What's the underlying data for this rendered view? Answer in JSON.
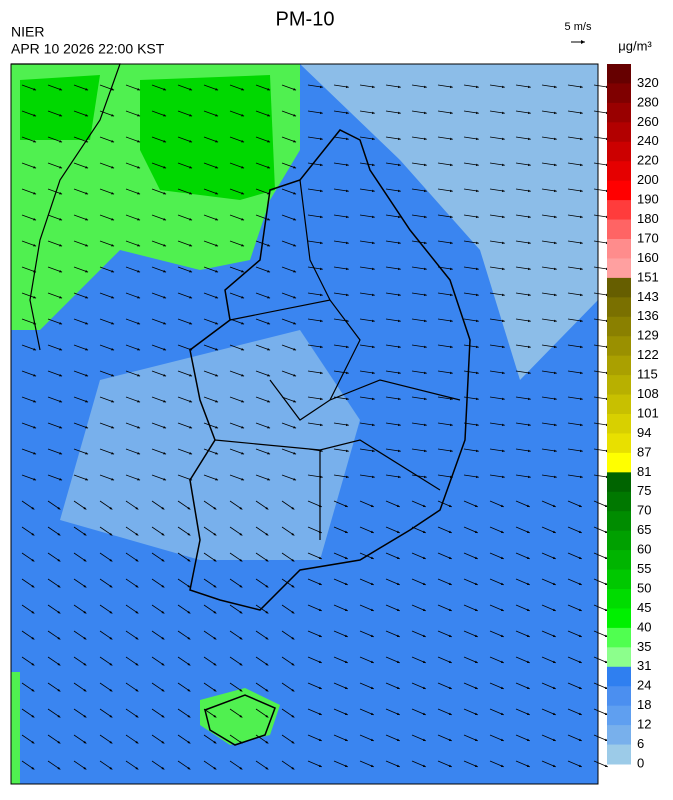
{
  "header": {
    "title": "PM-10",
    "agency": "NIER",
    "datetime": "APR 10 2026 22:00 KST",
    "wind_scale": "5 m/s",
    "unit": "μg/m³"
  },
  "colorbar": {
    "labels": [
      320,
      280,
      260,
      240,
      220,
      200,
      190,
      180,
      170,
      160,
      151,
      143,
      136,
      129,
      122,
      115,
      108,
      101,
      94,
      87,
      81,
      75,
      70,
      65,
      60,
      55,
      50,
      45,
      40,
      35,
      31,
      24,
      18,
      12,
      6,
      0
    ],
    "colors": [
      "#660000",
      "#7f0000",
      "#990000",
      "#b20000",
      "#cc0000",
      "#e50000",
      "#ff0000",
      "#ff3c3c",
      "#ff6464",
      "#ff8c8c",
      "#ffa0a0",
      "#665e00",
      "#7a7000",
      "#8a8000",
      "#9a9000",
      "#aaa000",
      "#b8b000",
      "#c8c000",
      "#d8d000",
      "#e8e000",
      "#ffff00",
      "#006400",
      "#007800",
      "#008c00",
      "#00a000",
      "#00b400",
      "#00c800",
      "#00dc00",
      "#00f000",
      "#50ff50",
      "#8cff8c",
      "#2f7ff0",
      "#4b8ff0",
      "#5f9ff0",
      "#78b0ec",
      "#9ccbe8"
    ]
  }
}
